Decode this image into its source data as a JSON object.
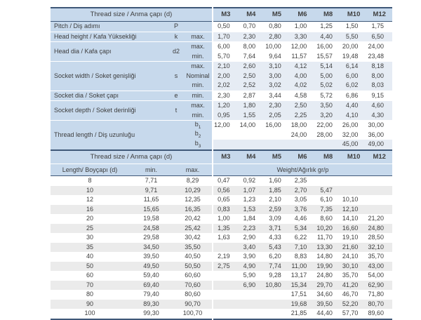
{
  "colors": {
    "header_blue": "#c7d9ec",
    "band_blue": "#e6ecf4",
    "band_gray": "#ebebeb",
    "border_navy": "#3f5878",
    "text": "#3d3d3d"
  },
  "spec_table": {
    "title": "Thread size / Anma çapı (d)",
    "columns": [
      "M3",
      "M4",
      "M5",
      "M6",
      "M8",
      "M10",
      "M12"
    ],
    "groups": [
      {
        "label": "Pitch / Diş adımı",
        "symbol": "P",
        "rows": [
          {
            "limit": "",
            "band": false,
            "values": [
              "0,50",
              "0,70",
              "0,80",
              "1,00",
              "1,25",
              "1,50",
              "1,75"
            ]
          }
        ]
      },
      {
        "label": "Head height / Kafa Yüksekliği",
        "symbol": "k",
        "rows": [
          {
            "limit": "max.",
            "band": true,
            "values": [
              "1,70",
              "2,30",
              "2,80",
              "3,30",
              "4,40",
              "5,50",
              "6,50"
            ]
          }
        ]
      },
      {
        "label": "Head dia / Kafa çapı",
        "symbol": "d2",
        "rows": [
          {
            "limit": "max.",
            "band": false,
            "values": [
              "6,00",
              "8,00",
              "10,00",
              "12,00",
              "16,00",
              "20,00",
              "24,00"
            ]
          },
          {
            "limit": "min.",
            "band": false,
            "values": [
              "5,70",
              "7,64",
              "9,64",
              "11,57",
              "15,57",
              "19,48",
              "23,48"
            ]
          }
        ]
      },
      {
        "label": "Socket width / Soket genişliği",
        "symbol": "s",
        "rows": [
          {
            "limit": "max.",
            "band": true,
            "values": [
              "2,10",
              "2,60",
              "3,10",
              "4,12",
              "5,14",
              "6,14",
              "8,18"
            ]
          },
          {
            "limit": "Nominal",
            "band": true,
            "values": [
              "2,00",
              "2,50",
              "3,00",
              "4,00",
              "5,00",
              "6,00",
              "8,00"
            ]
          },
          {
            "limit": "min.",
            "band": true,
            "values": [
              "2,02",
              "2,52",
              "3,02",
              "4,02",
              "5,02",
              "6,02",
              "8,03"
            ]
          }
        ]
      },
      {
        "label": "Socket dia / Soket çapı",
        "symbol": "e",
        "rows": [
          {
            "limit": "min.",
            "band": false,
            "values": [
              "2,30",
              "2,87",
              "3,44",
              "4,58",
              "5,72",
              "6,86",
              "9,15"
            ]
          }
        ]
      },
      {
        "label": "Socket depth / Soket derinliği",
        "symbol": "t",
        "rows": [
          {
            "limit": "max.",
            "band": true,
            "values": [
              "1,20",
              "1,80",
              "2,30",
              "2,50",
              "3,50",
              "4,40",
              "4,60"
            ]
          },
          {
            "limit": "min.",
            "band": true,
            "values": [
              "0,95",
              "1,55",
              "2,05",
              "2,25",
              "3,20",
              "4,10",
              "4,30"
            ]
          }
        ]
      },
      {
        "label": "Thread length / Diş uzunluğu",
        "symbol": "",
        "rows": [
          {
            "limit": "b",
            "sub": "1",
            "band": false,
            "values": [
              "12,00",
              "14,00",
              "16,00",
              "18,00",
              "22,00",
              "26,00",
              "30,00"
            ]
          },
          {
            "limit": "b",
            "sub": "2",
            "band": false,
            "values": [
              "",
              "",
              "",
              "24,00",
              "28,00",
              "32,00",
              "36,00"
            ]
          },
          {
            "limit": "b",
            "sub": "3",
            "band": true,
            "values": [
              "",
              "",
              "",
              "",
              "",
              "45,00",
              "49,00"
            ]
          }
        ]
      }
    ]
  },
  "weight_table": {
    "title": "Thread size / Anma çapı (d)",
    "length_header": "Length/ Boyçapı (d)",
    "min_header": "min.",
    "max_header": "max.",
    "weight_header": "Weight/Ağırlık gr/p",
    "columns": [
      "M3",
      "M4",
      "M5",
      "M6",
      "M8",
      "M10",
      "M12"
    ],
    "rows": [
      {
        "length": "8",
        "min": "7,71",
        "max": "8,29",
        "band": false,
        "weights": [
          "0,47",
          "0,92",
          "1,60",
          "2,35",
          "",
          "",
          ""
        ]
      },
      {
        "length": "10",
        "min": "9,71",
        "max": "10,29",
        "band": true,
        "weights": [
          "0,56",
          "1,07",
          "1,85",
          "2,70",
          "5,47",
          "",
          ""
        ]
      },
      {
        "length": "12",
        "min": "11,65",
        "max": "12,35",
        "band": false,
        "weights": [
          "0,65",
          "1,23",
          "2,10",
          "3,05",
          "6,10",
          "10,10",
          ""
        ]
      },
      {
        "length": "16",
        "min": "15,65",
        "max": "16,35",
        "band": true,
        "weights": [
          "0,83",
          "1,53",
          "2,59",
          "3,76",
          "7,35",
          "12,10",
          ""
        ]
      },
      {
        "length": "20",
        "min": "19,58",
        "max": "20,42",
        "band": false,
        "weights": [
          "1,00",
          "1,84",
          "3,09",
          "4,46",
          "8,60",
          "14,10",
          "21,20"
        ]
      },
      {
        "length": "25",
        "min": "24,58",
        "max": "25,42",
        "band": true,
        "weights": [
          "1,35",
          "2,23",
          "3,71",
          "5,34",
          "10,20",
          "16,60",
          "24,80"
        ]
      },
      {
        "length": "30",
        "min": "29,58",
        "max": "30,42",
        "band": false,
        "weights": [
          "1,63",
          "2,90",
          "4,33",
          "6,22",
          "11,70",
          "19,10",
          "28,50"
        ]
      },
      {
        "length": "35",
        "min": "34,50",
        "max": "35,50",
        "band": true,
        "weights": [
          "",
          "3,40",
          "5,43",
          "7,10",
          "13,30",
          "21,60",
          "32,10"
        ]
      },
      {
        "length": "40",
        "min": "39,50",
        "max": "40,50",
        "band": false,
        "weights": [
          "2,19",
          "3,90",
          "6,20",
          "8,83",
          "14,80",
          "24,10",
          "35,70"
        ]
      },
      {
        "length": "50",
        "min": "49,50",
        "max": "50,50",
        "band": true,
        "weights": [
          "2,75",
          "4,90",
          "7,74",
          "11,00",
          "19,90",
          "30,10",
          "43,00"
        ]
      },
      {
        "length": "60",
        "min": "59,40",
        "max": "60,60",
        "band": false,
        "weights": [
          "",
          "5,90",
          "9,28",
          "13,17",
          "24,80",
          "35,70",
          "54,00"
        ]
      },
      {
        "length": "70",
        "min": "69,40",
        "max": "70,60",
        "band": true,
        "weights": [
          "",
          "6,90",
          "10,80",
          "15,34",
          "29,70",
          "41,20",
          "62,90"
        ]
      },
      {
        "length": "80",
        "min": "79,40",
        "max": "80,60",
        "band": false,
        "weights": [
          "",
          "",
          "",
          "17,51",
          "34,60",
          "46,70",
          "71,80"
        ]
      },
      {
        "length": "90",
        "min": "89,30",
        "max": "90,70",
        "band": true,
        "weights": [
          "",
          "",
          "",
          "19,68",
          "39,50",
          "52,20",
          "80,70"
        ]
      },
      {
        "length": "100",
        "min": "99,30",
        "max": "100,70",
        "band": false,
        "weights": [
          "",
          "",
          "",
          "21,85",
          "44,40",
          "57,70",
          "89,60"
        ]
      }
    ]
  }
}
